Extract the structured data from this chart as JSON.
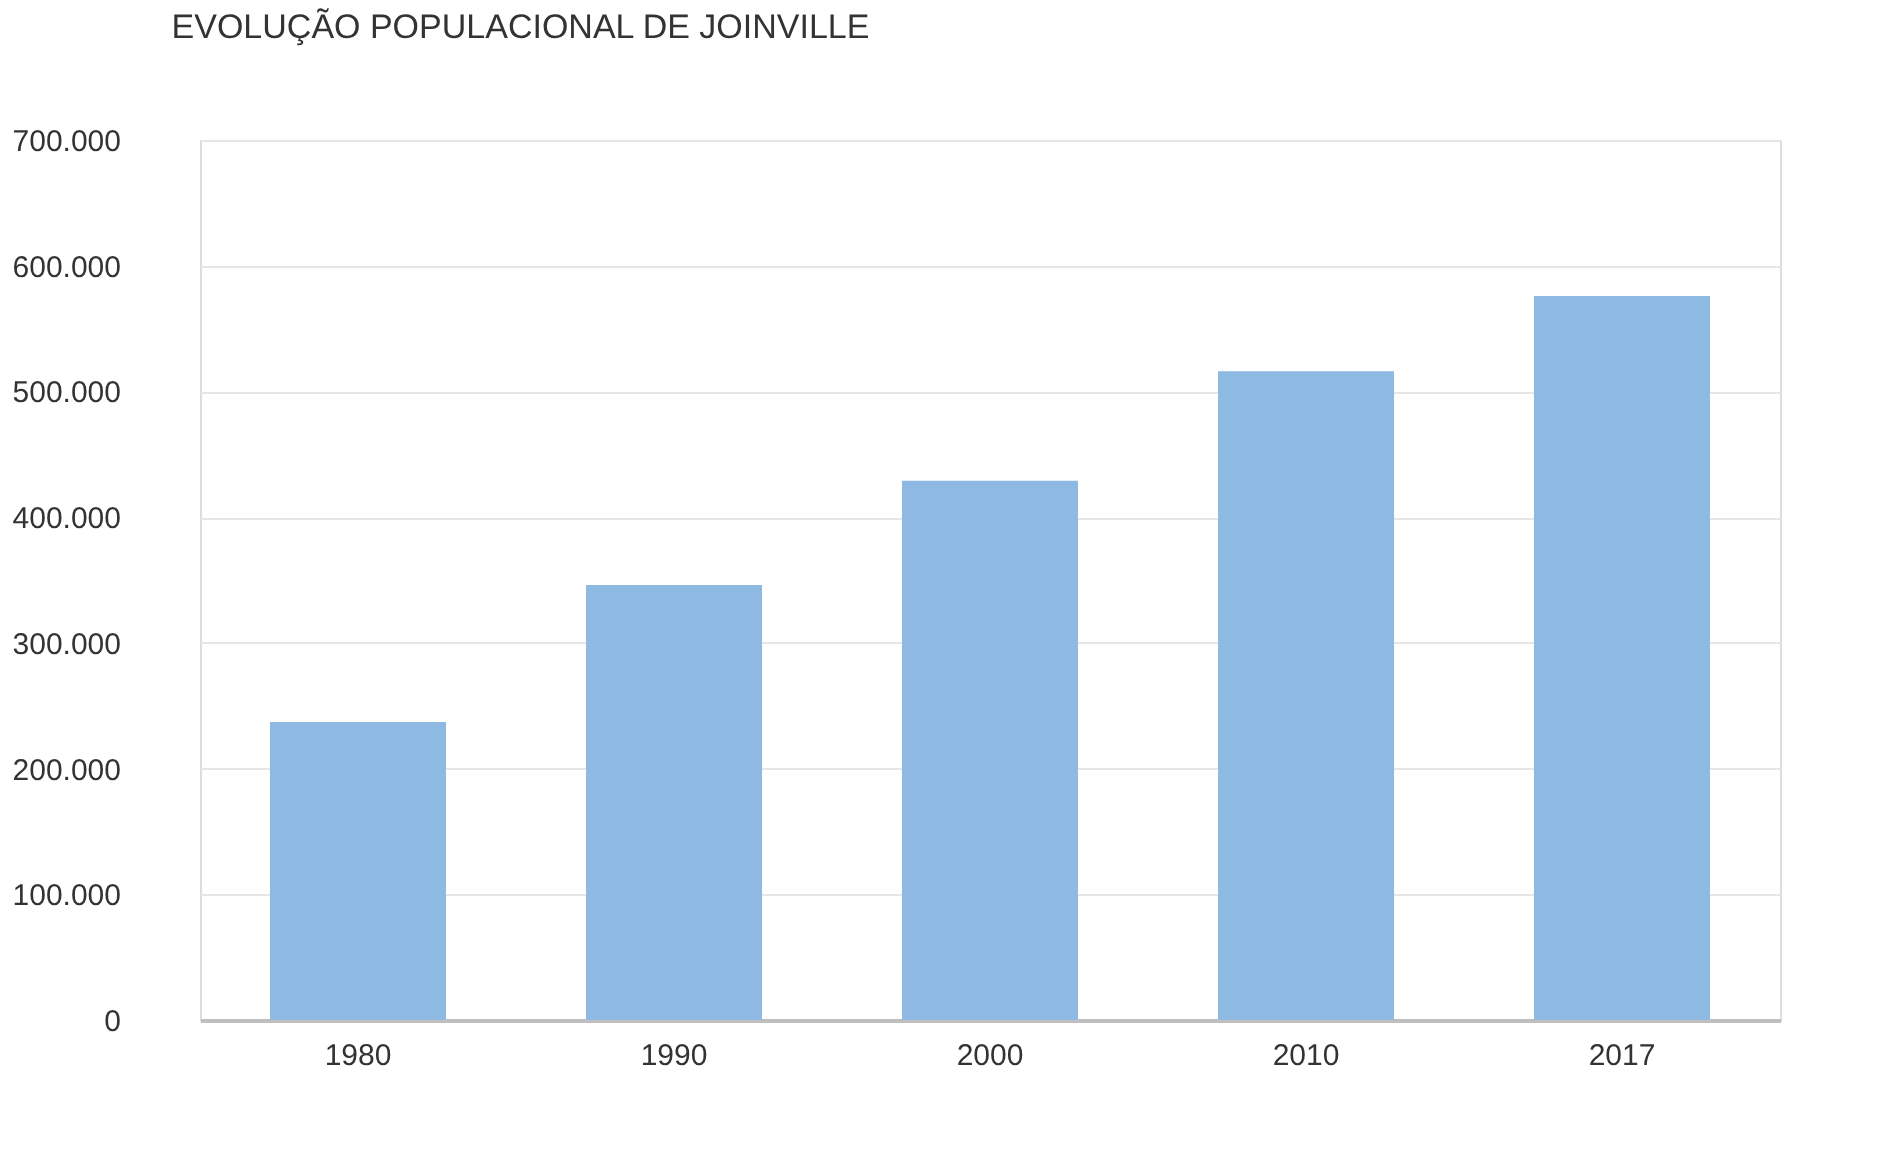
{
  "chart_data": {
    "type": "bar",
    "title": "EVOLUÇÃO POPULACIONAL DE JOINVILLE",
    "categories": [
      "1980",
      "1990",
      "2000",
      "2010",
      "2017"
    ],
    "values": [
      237000,
      346000,
      429000,
      516000,
      576000
    ],
    "color": "#8db9e2",
    "ylim": [
      0,
      700000
    ],
    "yticks": [
      {
        "value": 0,
        "label": "0"
      },
      {
        "value": 100000,
        "label": "100.000"
      },
      {
        "value": 200000,
        "label": "200.000"
      },
      {
        "value": 300000,
        "label": "300.000"
      },
      {
        "value": 400000,
        "label": "400.000"
      },
      {
        "value": 500000,
        "label": "500.000"
      },
      {
        "value": 600000,
        "label": "600.000"
      },
      {
        "value": 700000,
        "label": "700.000"
      }
    ],
    "grid": "y"
  }
}
